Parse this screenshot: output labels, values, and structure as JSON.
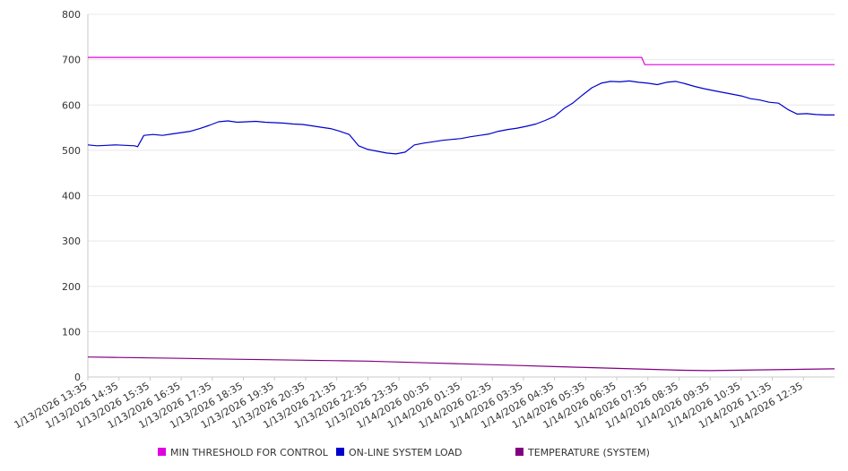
{
  "chart_data": {
    "type": "line",
    "title": "",
    "xlabel": "",
    "ylabel": "",
    "ylim": [
      0,
      800
    ],
    "yticks": [
      0,
      100,
      200,
      300,
      400,
      500,
      600,
      700,
      800
    ],
    "grid": true,
    "legend_position": "bottom",
    "categories": [
      "1/13/2026 13:35",
      "1/13/2026 14:35",
      "1/13/2026 15:35",
      "1/13/2026 16:35",
      "1/13/2026 17:35",
      "1/13/2026 18:35",
      "1/13/2026 19:35",
      "1/13/2026 20:35",
      "1/13/2026 21:35",
      "1/13/2026 22:35",
      "1/13/2026 23:35",
      "1/14/2026 00:35",
      "1/14/2026 01:35",
      "1/14/2026 02:35",
      "1/14/2026 03:35",
      "1/14/2026 04:35",
      "1/14/2026 05:35",
      "1/14/2026 06:35",
      "1/14/2026 07:35",
      "1/14/2026 08:35",
      "1/14/2026 09:35",
      "1/14/2026 10:35",
      "1/14/2026 11:35",
      "1/14/2026 12:35"
    ],
    "series": [
      {
        "name": "MIN THRESHOLD FOR CONTROL",
        "color": "#e000e0",
        "x": [
          0,
          17.8,
          17.9,
          24
        ],
        "values": [
          705,
          705,
          689,
          689
        ]
      },
      {
        "name": "ON-LINE SYSTEM LOAD",
        "color": "#0000cc",
        "x": [
          0,
          0.3,
          0.6,
          0.9,
          1.2,
          1.5,
          1.6,
          1.8,
          2.1,
          2.4,
          2.7,
          3.0,
          3.3,
          3.6,
          3.9,
          4.2,
          4.5,
          4.8,
          5.1,
          5.4,
          5.7,
          6.0,
          6.3,
          6.6,
          6.9,
          7.2,
          7.5,
          7.8,
          8.1,
          8.4,
          8.7,
          9.0,
          9.3,
          9.6,
          9.9,
          10.2,
          10.5,
          10.8,
          11.1,
          11.4,
          11.7,
          12.0,
          12.3,
          12.6,
          12.9,
          13.2,
          13.5,
          13.8,
          14.1,
          14.4,
          14.7,
          15.0,
          15.3,
          15.6,
          15.9,
          16.2,
          16.5,
          16.8,
          17.1,
          17.4,
          17.7,
          18.0,
          18.3,
          18.6,
          18.9,
          19.2,
          19.5,
          19.8,
          20.1,
          20.4,
          20.7,
          21.0,
          21.3,
          21.6,
          21.9,
          22.2,
          22.5,
          22.8,
          23.1,
          23.4,
          23.7,
          24.0
        ],
        "values": [
          512,
          510,
          511,
          512,
          511,
          510,
          508,
          533,
          535,
          533,
          536,
          539,
          542,
          548,
          555,
          563,
          565,
          562,
          563,
          564,
          562,
          561,
          560,
          558,
          557,
          554,
          551,
          548,
          542,
          535,
          510,
          502,
          498,
          494,
          492,
          496,
          512,
          516,
          519,
          522,
          524,
          526,
          530,
          533,
          536,
          542,
          546,
          549,
          553,
          558,
          566,
          575,
          592,
          605,
          622,
          638,
          648,
          652,
          651,
          653,
          650,
          648,
          645,
          650,
          652,
          647,
          641,
          636,
          632,
          628,
          624,
          620,
          614,
          611,
          606,
          604,
          590,
          580,
          581,
          579,
          578,
          578
        ]
      },
      {
        "name": "TEMPERATURE (SYSTEM)",
        "color": "#800080",
        "x": [
          0,
          1,
          2,
          3,
          4,
          5,
          6,
          7,
          8,
          9,
          10,
          11,
          12,
          13,
          14,
          15,
          16,
          17,
          18,
          19,
          20,
          21,
          22,
          23,
          24
        ],
        "values": [
          44,
          43,
          42,
          41,
          40,
          39,
          38,
          37,
          36,
          35,
          33,
          31,
          29,
          27,
          25,
          23,
          21,
          19,
          17,
          15,
          14,
          15,
          16,
          17,
          18
        ]
      }
    ]
  }
}
